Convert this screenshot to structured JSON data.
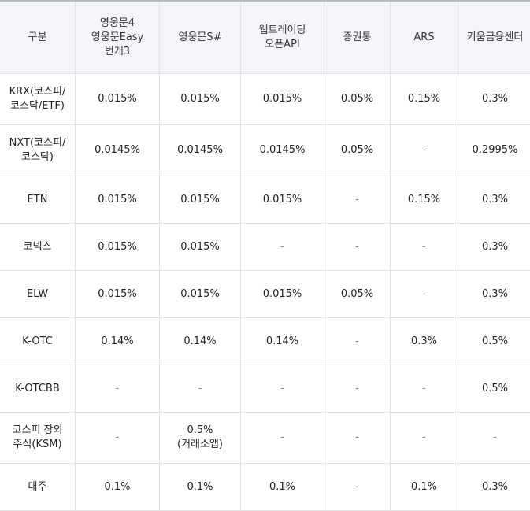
{
  "table": {
    "headers": [
      "구분",
      "영웅문4\n영웅문Easy\n번개3",
      "영웅문S#",
      "웹트레이딩\n오픈API",
      "증권통",
      "ARS",
      "키움금융센터"
    ],
    "rows": [
      {
        "label": "KRX(코스피/\n코스닥/ETF)",
        "cells": [
          "0.015%",
          "0.015%",
          "0.015%",
          "0.05%",
          "0.15%",
          "0.3%"
        ]
      },
      {
        "label": "NXT(코스피/\n코스닥)",
        "cells": [
          "0.0145%",
          "0.0145%",
          "0.0145%",
          "0.05%",
          "-",
          "0.2995%"
        ]
      },
      {
        "label": "ETN",
        "cells": [
          "0.015%",
          "0.015%",
          "0.015%",
          "-",
          "0.15%",
          "0.3%"
        ]
      },
      {
        "label": "코넥스",
        "cells": [
          "0.015%",
          "0.015%",
          "-",
          "-",
          "-",
          "0.3%"
        ]
      },
      {
        "label": "ELW",
        "cells": [
          "0.015%",
          "0.015%",
          "0.015%",
          "0.05%",
          "-",
          "0.3%"
        ]
      },
      {
        "label": "K-OTC",
        "cells": [
          "0.14%",
          "0.14%",
          "0.14%",
          "-",
          "0.3%",
          "0.5%"
        ]
      },
      {
        "label": "K-OTCBB",
        "cells": [
          "-",
          "-",
          "-",
          "-",
          "-",
          "0.5%"
        ]
      },
      {
        "label": "코스피 장외\n주식(KSM)",
        "cells": [
          "-",
          "0.5%\n(거래소앱)",
          "-",
          "-",
          "-",
          "-"
        ]
      },
      {
        "label": "대주",
        "cells": [
          "0.1%",
          "0.1%",
          "0.1%",
          "-",
          "0.1%",
          "0.3%"
        ]
      }
    ]
  }
}
